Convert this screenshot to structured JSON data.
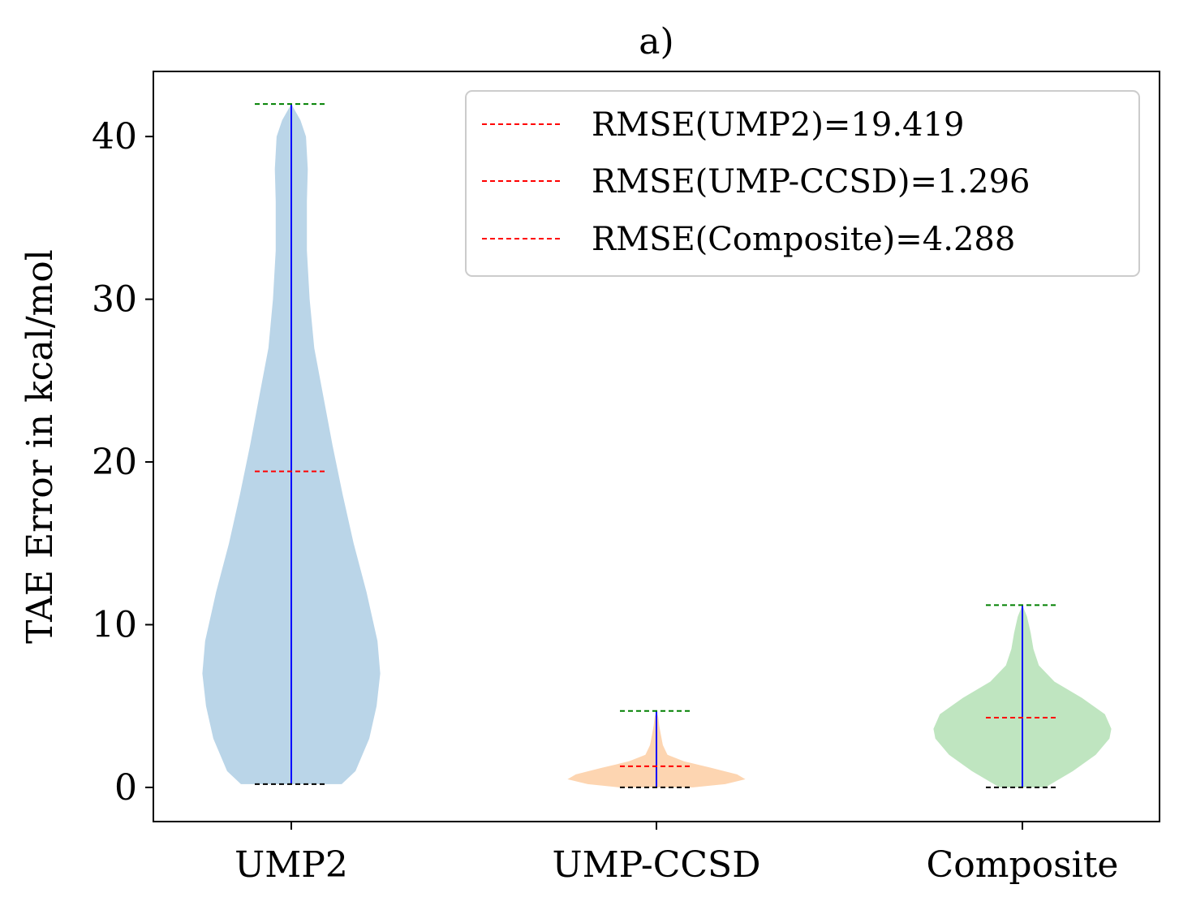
{
  "chart_data": {
    "type": "violin",
    "title": "a)",
    "xlabel": "",
    "ylabel": "TAE Error in kcal/mol",
    "categories": [
      "UMP2",
      "UMP-CCSD",
      "Composite"
    ],
    "ylim": [
      -2.1,
      44.0
    ],
    "yticks": [
      0,
      10,
      20,
      30,
      40
    ],
    "grid": false,
    "legend_position": "top-right",
    "violins": [
      {
        "name": "UMP2",
        "color": "#bad5e8",
        "min": 0.2,
        "max": 42.0,
        "rmse": 19.419,
        "profile": [
          [
            0.2,
            0.55
          ],
          [
            1,
            0.7
          ],
          [
            3,
            0.85
          ],
          [
            5,
            0.93
          ],
          [
            7,
            0.97
          ],
          [
            9,
            0.94
          ],
          [
            12,
            0.82
          ],
          [
            15,
            0.68
          ],
          [
            18,
            0.56
          ],
          [
            21,
            0.45
          ],
          [
            24,
            0.35
          ],
          [
            27,
            0.25
          ],
          [
            30,
            0.2
          ],
          [
            33,
            0.17
          ],
          [
            36,
            0.17
          ],
          [
            38,
            0.18
          ],
          [
            40,
            0.16
          ],
          [
            41,
            0.1
          ],
          [
            42,
            0.0
          ]
        ]
      },
      {
        "name": "UMP-CCSD",
        "color": "#fdd5b1",
        "min": 0.0,
        "max": 4.7,
        "rmse": 1.296,
        "profile": [
          [
            0.0,
            0.4
          ],
          [
            0.2,
            0.75
          ],
          [
            0.5,
            0.97
          ],
          [
            0.8,
            0.88
          ],
          [
            1.2,
            0.6
          ],
          [
            1.6,
            0.3
          ],
          [
            2.0,
            0.12
          ],
          [
            2.6,
            0.07
          ],
          [
            3.2,
            0.05
          ],
          [
            3.8,
            0.03
          ],
          [
            4.3,
            0.02
          ],
          [
            4.7,
            0.0
          ]
        ]
      },
      {
        "name": "Composite",
        "color": "#bfe5c0",
        "min": 0.0,
        "max": 11.2,
        "rmse": 4.288,
        "profile": [
          [
            0.0,
            0.25
          ],
          [
            1.0,
            0.55
          ],
          [
            2.0,
            0.8
          ],
          [
            3.0,
            0.95
          ],
          [
            3.6,
            0.97
          ],
          [
            4.5,
            0.9
          ],
          [
            5.5,
            0.65
          ],
          [
            6.5,
            0.35
          ],
          [
            7.5,
            0.18
          ],
          [
            8.5,
            0.12
          ],
          [
            9.5,
            0.09
          ],
          [
            10.5,
            0.05
          ],
          [
            11.2,
            0.0
          ]
        ]
      }
    ],
    "legend": [
      "RMSE(UMP2)=19.419",
      "RMSE(UMP-CCSD)=1.296",
      "RMSE(Composite)=4.288"
    ],
    "colors": {
      "max_line": "#008000",
      "min_line": "#000000",
      "rmse_line": "#ff0000",
      "range_line": "#0000ff"
    }
  }
}
